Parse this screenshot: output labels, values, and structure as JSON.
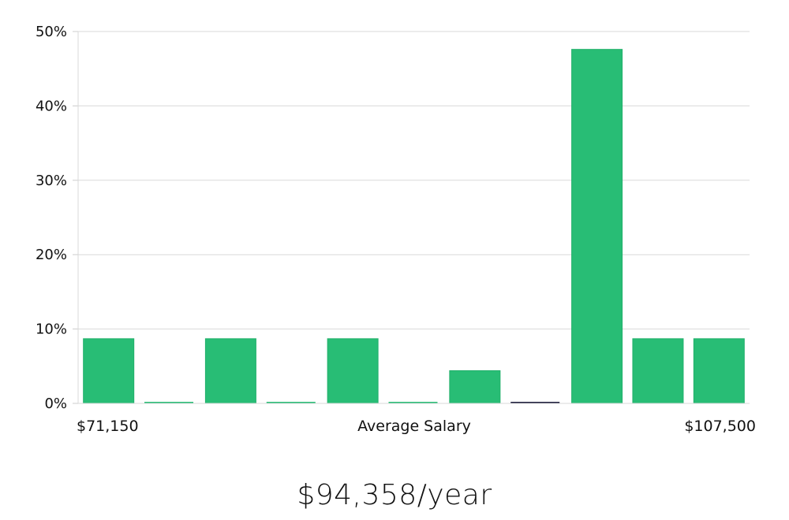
{
  "chart_data": {
    "type": "bar",
    "title": "",
    "xlabel": "Average Salary",
    "ylabel": "",
    "x_min_label": "$71,150",
    "x_max_label": "$107,500",
    "ylim": [
      0,
      50
    ],
    "y_ticks": [
      0,
      10,
      20,
      30,
      40,
      50
    ],
    "y_tick_labels": [
      "0%",
      "10%",
      "20%",
      "30%",
      "40%",
      "50%"
    ],
    "grid": true,
    "values": [
      8.7,
      0,
      8.7,
      0,
      8.7,
      0,
      4.4,
      0,
      47.6,
      8.7,
      8.7
    ],
    "bar_color": "#28bd75",
    "highlight_index": 7,
    "highlight_color": "#1b1b3a"
  },
  "summary": {
    "average_salary": "$94,358/year"
  }
}
